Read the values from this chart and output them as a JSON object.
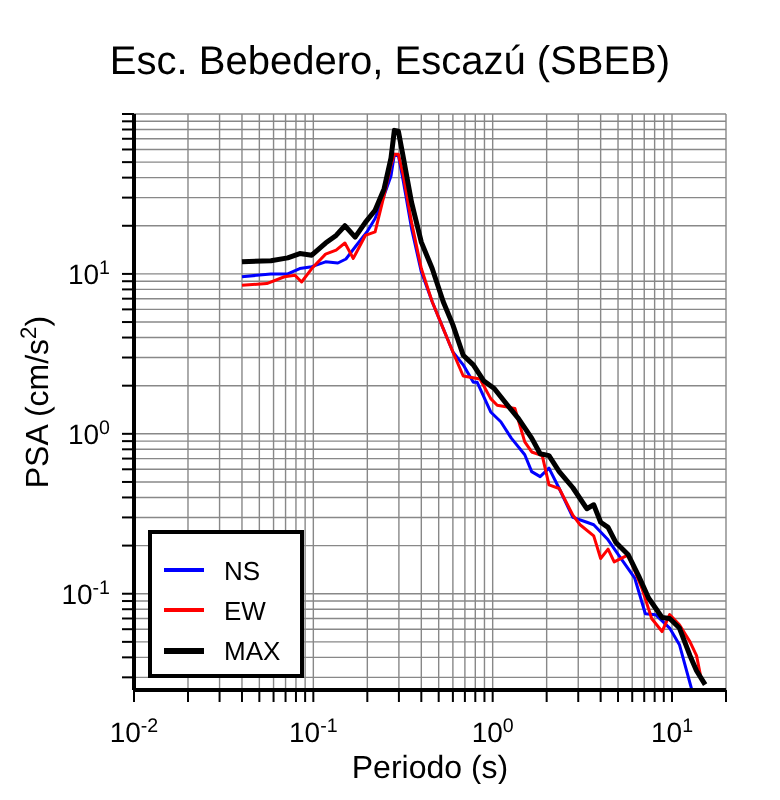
{
  "chart_data": {
    "type": "line",
    "title": "Esc. Bebedero, Escazú (SBEB)",
    "xlabel": "Periodo (s)",
    "ylabel": "PSA (cm/s$^{2}$)",
    "log": "xy",
    "grid": true,
    "legend": "bottom left",
    "marker": "none",
    "line_style": "solid",
    "xlim": [
      0.01,
      20
    ],
    "ylim": [
      0.025,
      100
    ],
    "xticks": [
      {
        "value": 0.01,
        "label": "10$^{-2}$"
      },
      {
        "value": 0.02,
        "label": null
      },
      {
        "value": 0.03,
        "label": null
      },
      {
        "value": 0.04,
        "label": null
      },
      {
        "value": 0.05,
        "label": null
      },
      {
        "value": 0.06,
        "label": null
      },
      {
        "value": 0.07,
        "label": null
      },
      {
        "value": 0.08,
        "label": null
      },
      {
        "value": 0.09,
        "label": null
      },
      {
        "value": 0.1,
        "label": "10$^{-1}$"
      },
      {
        "value": 0.2,
        "label": null
      },
      {
        "value": 0.3,
        "label": null
      },
      {
        "value": 0.4,
        "label": null
      },
      {
        "value": 0.5,
        "label": null
      },
      {
        "value": 0.6,
        "label": null
      },
      {
        "value": 0.7,
        "label": null
      },
      {
        "value": 0.8,
        "label": null
      },
      {
        "value": 0.9,
        "label": null
      },
      {
        "value": 1,
        "label": "10$^{0}$"
      },
      {
        "value": 2,
        "label": null
      },
      {
        "value": 3,
        "label": null
      },
      {
        "value": 4,
        "label": null
      },
      {
        "value": 5,
        "label": null
      },
      {
        "value": 6,
        "label": null
      },
      {
        "value": 7,
        "label": null
      },
      {
        "value": 8,
        "label": null
      },
      {
        "value": 9,
        "label": null
      },
      {
        "value": 10,
        "label": "10$^{1}$"
      },
      {
        "value": 20,
        "label": null
      }
    ],
    "yticks": [
      {
        "value": 0.03,
        "label": null
      },
      {
        "value": 0.04,
        "label": null
      },
      {
        "value": 0.05,
        "label": null
      },
      {
        "value": 0.06,
        "label": null
      },
      {
        "value": 0.07,
        "label": null
      },
      {
        "value": 0.08,
        "label": null
      },
      {
        "value": 0.09,
        "label": null
      },
      {
        "value": 0.1,
        "label": "10$^{-1}$"
      },
      {
        "value": 0.2,
        "label": null
      },
      {
        "value": 0.3,
        "label": null
      },
      {
        "value": 0.4,
        "label": null
      },
      {
        "value": 0.5,
        "label": null
      },
      {
        "value": 0.6,
        "label": null
      },
      {
        "value": 0.7,
        "label": null
      },
      {
        "value": 0.8,
        "label": null
      },
      {
        "value": 0.9,
        "label": null
      },
      {
        "value": 1,
        "label": "10$^{0}$"
      },
      {
        "value": 2,
        "label": null
      },
      {
        "value": 3,
        "label": null
      },
      {
        "value": 4,
        "label": null
      },
      {
        "value": 5,
        "label": null
      },
      {
        "value": 6,
        "label": null
      },
      {
        "value": 7,
        "label": null
      },
      {
        "value": 8,
        "label": null
      },
      {
        "value": 9,
        "label": null
      },
      {
        "value": 10,
        "label": "10$^{1}$"
      },
      {
        "value": 20,
        "label": null
      },
      {
        "value": 30,
        "label": null
      },
      {
        "value": 40,
        "label": null
      },
      {
        "value": 50,
        "label": null
      },
      {
        "value": 60,
        "label": null
      },
      {
        "value": 70,
        "label": null
      },
      {
        "value": 80,
        "label": null
      },
      {
        "value": 90,
        "label": null
      },
      {
        "value": 100,
        "label": null
      }
    ],
    "series": [
      {
        "name": "NS",
        "color": "#0000ff",
        "x": [
          0.04,
          0.058,
          0.072,
          0.084,
          0.098,
          0.117,
          0.137,
          0.152,
          0.174,
          0.199,
          0.221,
          0.248,
          0.271,
          0.283,
          0.298,
          0.318,
          0.353,
          0.4,
          0.46,
          0.53,
          0.6,
          0.685,
          0.78,
          0.82,
          0.975,
          1.11,
          1.27,
          1.51,
          1.65,
          1.84,
          2.06,
          2.35,
          2.8,
          3.35,
          3.66,
          4.36,
          5.2,
          6.2,
          7.1,
          8.1,
          9.7,
          11,
          12.9
        ],
        "values": [
          9.6,
          10,
          10,
          10.8,
          11.1,
          11.9,
          11.7,
          12.4,
          15.1,
          18.3,
          22.2,
          31,
          41,
          56,
          55,
          37.6,
          19.2,
          10.3,
          6.7,
          4.55,
          3.25,
          2.7,
          2.1,
          2.1,
          1.37,
          1.19,
          0.94,
          0.74,
          0.58,
          0.54,
          0.61,
          0.455,
          0.3,
          0.28,
          0.27,
          0.22,
          0.166,
          0.125,
          0.075,
          0.074,
          0.061,
          0.048,
          0.025
        ]
      },
      {
        "name": "EW",
        "color": "#ff0000",
        "x": [
          0.04,
          0.055,
          0.069,
          0.079,
          0.086,
          0.098,
          0.117,
          0.134,
          0.15,
          0.167,
          0.195,
          0.221,
          0.248,
          0.271,
          0.283,
          0.298,
          0.318,
          0.353,
          0.4,
          0.46,
          0.53,
          0.6,
          0.685,
          0.85,
          0.975,
          1.06,
          1.33,
          1.51,
          1.65,
          1.89,
          2.06,
          2.35,
          2.8,
          3.07,
          3.66,
          4.0,
          4.4,
          4.76,
          5.7,
          6.8,
          7.7,
          8.8,
          9.7,
          11,
          12.6,
          13.7,
          14.4
        ],
        "values": [
          8.5,
          8.7,
          9.6,
          9.8,
          8.9,
          10.8,
          13.3,
          14.1,
          15.6,
          12.5,
          17.4,
          18.3,
          31,
          48,
          56,
          56,
          41,
          21,
          10.8,
          6.7,
          4.55,
          3.25,
          2.3,
          2.2,
          1.66,
          1.51,
          1.44,
          0.89,
          0.77,
          0.73,
          0.48,
          0.455,
          0.31,
          0.27,
          0.23,
          0.166,
          0.19,
          0.158,
          0.175,
          0.108,
          0.07,
          0.058,
          0.074,
          0.064,
          0.05,
          0.041,
          0.031
        ]
      },
      {
        "name": "MAX",
        "color": "#000000",
        "x": [
          0.04,
          0.058,
          0.072,
          0.084,
          0.098,
          0.117,
          0.134,
          0.15,
          0.171,
          0.195,
          0.221,
          0.248,
          0.271,
          0.283,
          0.298,
          0.318,
          0.353,
          0.4,
          0.46,
          0.53,
          0.6,
          0.685,
          0.78,
          0.89,
          1.02,
          1.21,
          1.39,
          1.65,
          1.84,
          2.06,
          2.35,
          2.8,
          3.35,
          3.66,
          4.0,
          4.4,
          4.85,
          5.7,
          6.5,
          7.4,
          8.8,
          9.7,
          11,
          12.6,
          13.7,
          15.3
        ],
        "values": [
          11.9,
          12.1,
          12.6,
          13.4,
          13.1,
          15.6,
          17.4,
          20,
          17,
          21,
          25,
          34,
          53,
          79,
          78,
          53,
          28,
          15.8,
          10.8,
          6.7,
          4.8,
          3.1,
          2.7,
          2.15,
          1.92,
          1.51,
          1.25,
          0.94,
          0.75,
          0.73,
          0.58,
          0.46,
          0.34,
          0.36,
          0.28,
          0.26,
          0.21,
          0.175,
          0.13,
          0.094,
          0.071,
          0.07,
          0.061,
          0.041,
          0.033,
          0.027
        ]
      }
    ]
  }
}
